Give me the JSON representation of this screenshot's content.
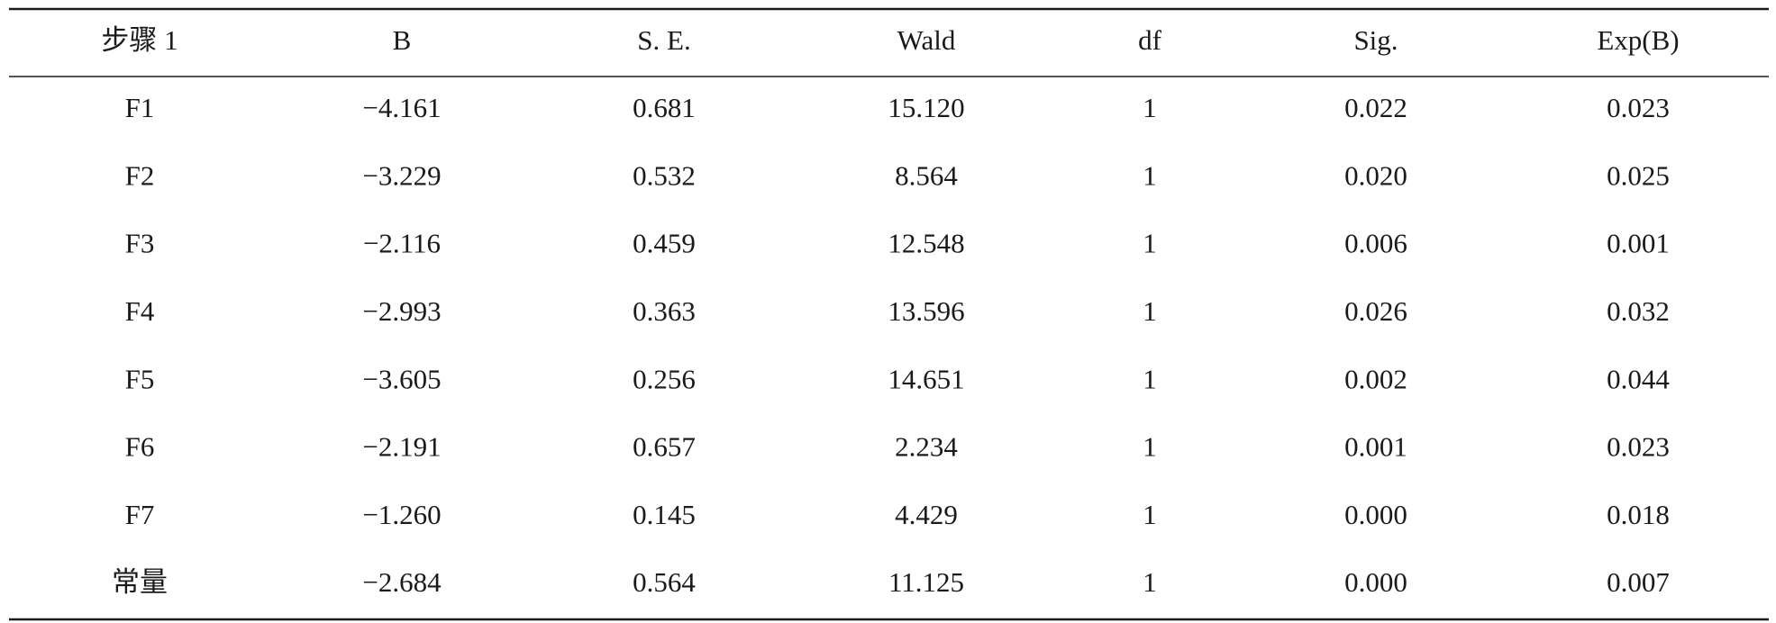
{
  "table": {
    "header": [
      "步骤 1",
      "B",
      "S. E.",
      "Wald",
      "df",
      "Sig.",
      "Exp(B)"
    ],
    "rows": [
      [
        "F1",
        "−4.161",
        "0.681",
        "15.120",
        "1",
        "0.022",
        "0.023"
      ],
      [
        "F2",
        "−3.229",
        "0.532",
        "8.564",
        "1",
        "0.020",
        "0.025"
      ],
      [
        "F3",
        "−2.116",
        "0.459",
        "12.548",
        "1",
        "0.006",
        "0.001"
      ],
      [
        "F4",
        "−2.993",
        "0.363",
        "13.596",
        "1",
        "0.026",
        "0.032"
      ],
      [
        "F5",
        "−3.605",
        "0.256",
        "14.651",
        "1",
        "0.002",
        "0.044"
      ],
      [
        "F6",
        "−2.191",
        "0.657",
        "2.234",
        "1",
        "0.001",
        "0.023"
      ],
      [
        "F7",
        "−1.260",
        "0.145",
        "4.429",
        "1",
        "0.000",
        "0.018"
      ],
      [
        "常量",
        "−2.684",
        "0.564",
        "11.125",
        "1",
        "0.000",
        "0.007"
      ]
    ]
  }
}
